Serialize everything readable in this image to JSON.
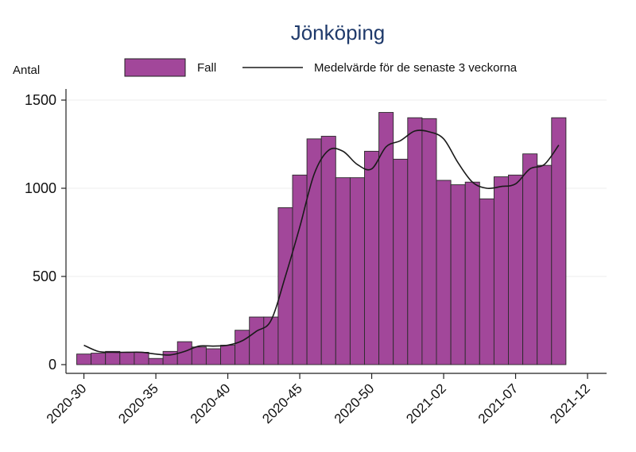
{
  "chart_data": {
    "type": "bar",
    "title": "Jönköping",
    "ylabel": "Antal",
    "xlabel": "",
    "ylim": [
      0,
      1600
    ],
    "yticks": [
      0,
      500,
      1000,
      1500
    ],
    "xtick_labels": [
      "2020-30",
      "2020-35",
      "2020-40",
      "2020-45",
      "2020-50",
      "2021-02",
      "2021-07",
      "2021-12"
    ],
    "xtick_index": [
      0,
      5,
      10,
      15,
      20,
      25,
      30,
      35
    ],
    "legend_position": "top",
    "grid": true,
    "series": [
      {
        "name": "Fall",
        "kind": "bar",
        "color": "#a2479a",
        "values": [
          60,
          65,
          75,
          70,
          70,
          35,
          75,
          130,
          100,
          90,
          110,
          195,
          270,
          270,
          890,
          1075,
          1280,
          1295,
          1060,
          1060,
          1210,
          1430,
          1165,
          1400,
          1395,
          1045,
          1020,
          1035,
          940,
          1065,
          1075,
          1195,
          1130,
          1400
        ]
      },
      {
        "name": "Medelvärde för de senaste 3 veckorna",
        "kind": "line",
        "color": "#1a1a1a",
        "values": [
          110,
          75,
          70,
          70,
          70,
          60,
          55,
          75,
          105,
          105,
          110,
          135,
          190,
          250,
          500,
          780,
          1080,
          1215,
          1210,
          1135,
          1110,
          1235,
          1270,
          1325,
          1320,
          1280,
          1145,
          1035,
          1000,
          1010,
          1025,
          1110,
          1135,
          1245
        ]
      }
    ]
  }
}
